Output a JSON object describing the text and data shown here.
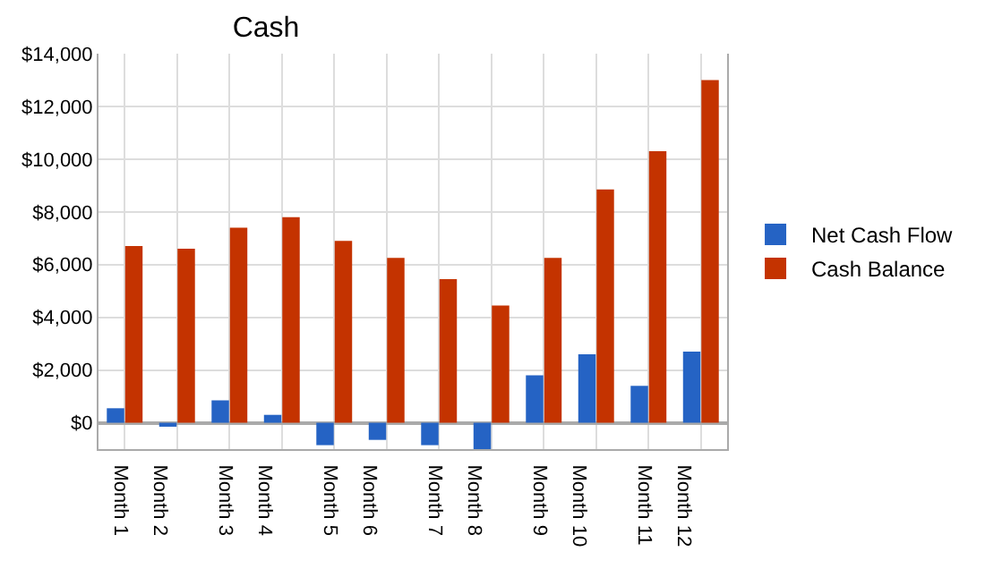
{
  "chart_data": {
    "type": "bar",
    "title": "Cash",
    "categories": [
      "Month 1",
      "Month 2",
      "Month 3",
      "Month 4",
      "Month 5",
      "Month 6",
      "Month 7",
      "Month 8",
      "Month 9",
      "Month 10",
      "Month 11",
      "Month 12"
    ],
    "series": [
      {
        "name": "Net Cash Flow",
        "color": "#2563c4",
        "values": [
          550,
          -150,
          850,
          300,
          -850,
          -650,
          -850,
          -1000,
          1800,
          2600,
          1400,
          2700
        ]
      },
      {
        "name": "Cash Balance",
        "color": "#c43300",
        "values": [
          6700,
          6600,
          7400,
          7800,
          6900,
          6250,
          5450,
          4450,
          6250,
          8850,
          10300,
          13000
        ]
      }
    ],
    "ylim": [
      -1000,
      14000
    ],
    "yticks": [
      {
        "value": 0,
        "label": "$0"
      },
      {
        "value": 2000,
        "label": "$2,000"
      },
      {
        "value": 4000,
        "label": "$4,000"
      },
      {
        "value": 6000,
        "label": "$6,000"
      },
      {
        "value": 8000,
        "label": "$8,000"
      },
      {
        "value": 10000,
        "label": "$10,000"
      },
      {
        "value": 12000,
        "label": "$12,000"
      },
      {
        "value": 14000,
        "label": "$14,000"
      }
    ],
    "grid": true,
    "legend": "right"
  }
}
